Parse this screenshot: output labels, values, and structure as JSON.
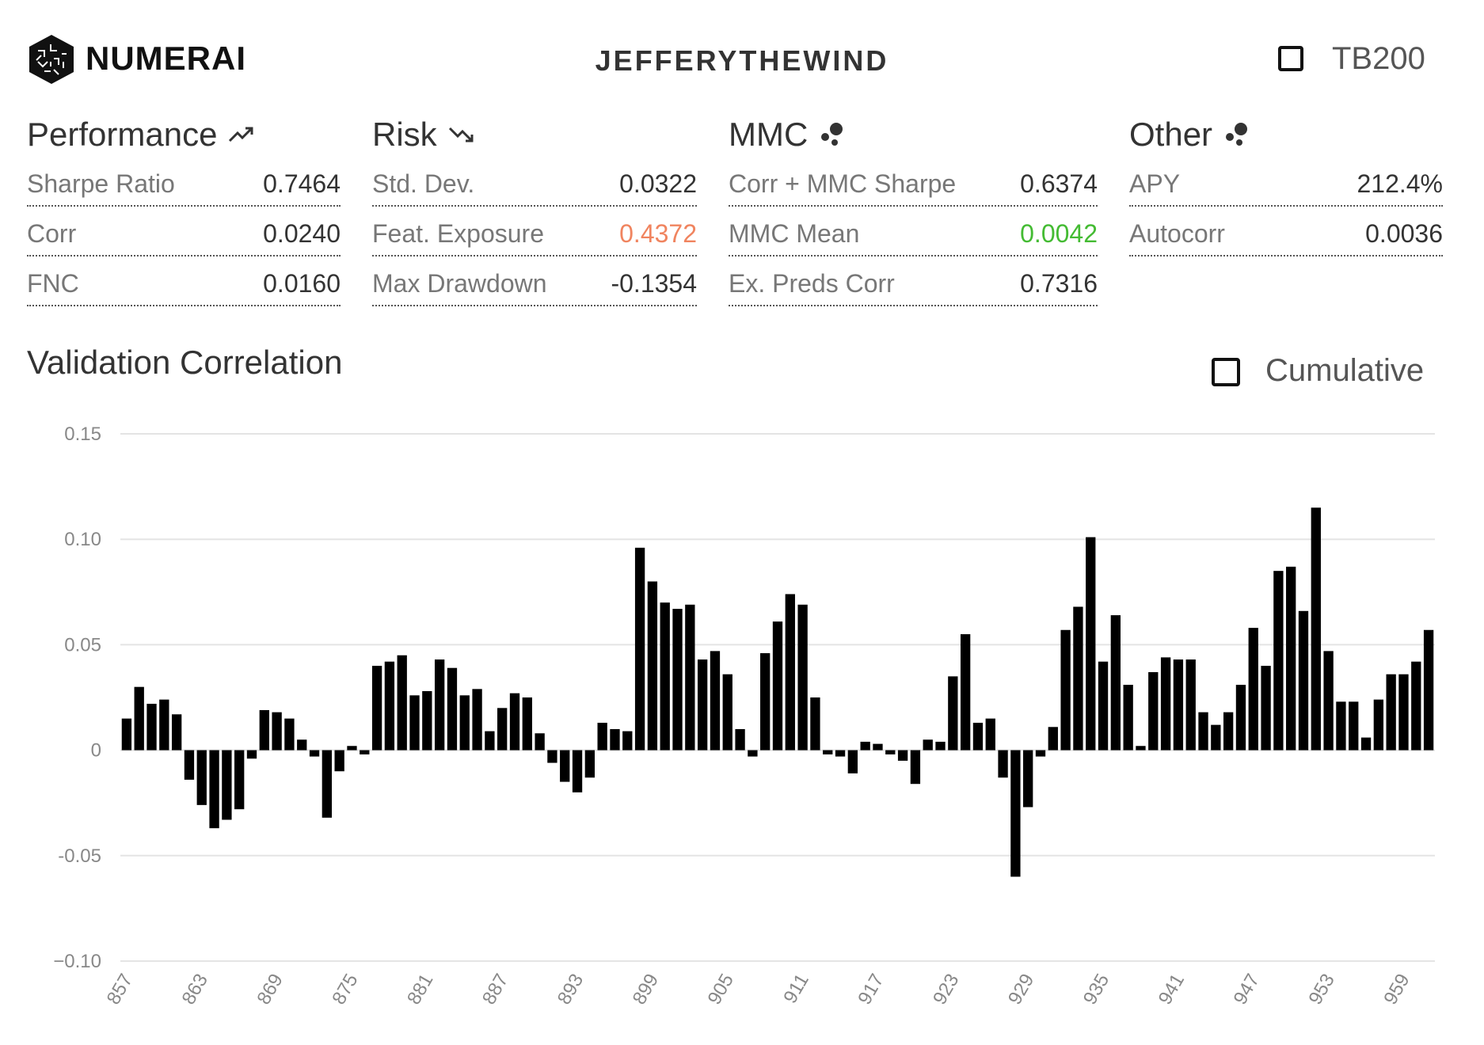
{
  "header": {
    "brand": "NUMERAI",
    "username": "JEFFERYTHEWIND",
    "toggle_label": "TB200"
  },
  "groups": [
    {
      "title": "Performance",
      "icon": "trending-up-icon",
      "rows": [
        {
          "label": "Sharpe Ratio",
          "value": "0.7464"
        },
        {
          "label": "Corr",
          "value": "0.0240"
        },
        {
          "label": "FNC",
          "value": "0.0160"
        }
      ]
    },
    {
      "title": "Risk",
      "icon": "trending-down-icon",
      "rows": [
        {
          "label": "Std. Dev.",
          "value": "0.0322"
        },
        {
          "label": "Feat. Exposure",
          "value": "0.4372",
          "color": "#f0845f"
        },
        {
          "label": "Max Drawdown",
          "value": "-0.1354"
        }
      ]
    },
    {
      "title": "MMC",
      "icon": "bubbles-icon",
      "rows": [
        {
          "label": "Corr + MMC Sharpe",
          "value": "0.6374"
        },
        {
          "label": "MMC Mean",
          "value": "0.0042",
          "color": "#44bb33"
        },
        {
          "label": "Ex. Preds Corr",
          "value": "0.7316"
        }
      ]
    },
    {
      "title": "Other",
      "icon": "bubbles-icon",
      "rows": [
        {
          "label": "APY",
          "value": "212.4%"
        },
        {
          "label": "Autocorr",
          "value": "0.0036"
        }
      ]
    }
  ],
  "validation": {
    "title": "Validation Correlation",
    "cumulative_label": "Cumulative"
  },
  "chart_data": {
    "type": "bar",
    "title": "Validation Correlation",
    "xlabel": "",
    "ylabel": "",
    "ylim": [
      -0.1,
      0.15
    ],
    "yticks": [
      {
        "value": 0.15,
        "label": "0.15"
      },
      {
        "value": 0.1,
        "label": "0.10"
      },
      {
        "value": 0.05,
        "label": "0.05"
      },
      {
        "value": 0,
        "label": "0"
      },
      {
        "value": -0.05,
        "label": "-0.05"
      },
      {
        "value": -0.1,
        "label": "−0.10"
      }
    ],
    "x_start": 857,
    "x_tick_step": 6,
    "xtick_labels": [
      "857",
      "863",
      "869",
      "875",
      "881",
      "887",
      "893",
      "899",
      "905",
      "911",
      "917",
      "923",
      "929",
      "935",
      "941",
      "947",
      "953",
      "959"
    ],
    "values": [
      0.015,
      0.03,
      0.022,
      0.024,
      0.017,
      -0.014,
      -0.026,
      -0.037,
      -0.033,
      -0.028,
      -0.004,
      0.019,
      0.018,
      0.015,
      0.005,
      -0.003,
      -0.032,
      -0.01,
      0.002,
      -0.002,
      0.04,
      0.042,
      0.045,
      0.026,
      0.028,
      0.043,
      0.039,
      0.026,
      0.029,
      0.009,
      0.02,
      0.027,
      0.025,
      0.008,
      -0.006,
      -0.015,
      -0.02,
      -0.013,
      0.013,
      0.01,
      0.009,
      0.096,
      0.08,
      0.07,
      0.067,
      0.069,
      0.043,
      0.047,
      0.036,
      0.01,
      -0.003,
      0.046,
      0.061,
      0.074,
      0.069,
      0.025,
      -0.002,
      -0.003,
      -0.011,
      0.004,
      0.003,
      -0.002,
      -0.005,
      -0.016,
      0.005,
      0.004,
      0.035,
      0.055,
      0.013,
      0.015,
      -0.013,
      -0.06,
      -0.027,
      -0.003,
      0.011,
      0.057,
      0.068,
      0.101,
      0.042,
      0.064,
      0.031,
      0.002,
      0.037,
      0.044,
      0.043,
      0.043,
      0.018,
      0.012,
      0.018,
      0.031,
      0.058,
      0.04,
      0.085,
      0.087,
      0.066,
      0.115,
      0.047,
      0.023,
      0.023,
      0.006,
      0.024,
      0.036,
      0.036,
      0.042,
      0.057
    ]
  }
}
